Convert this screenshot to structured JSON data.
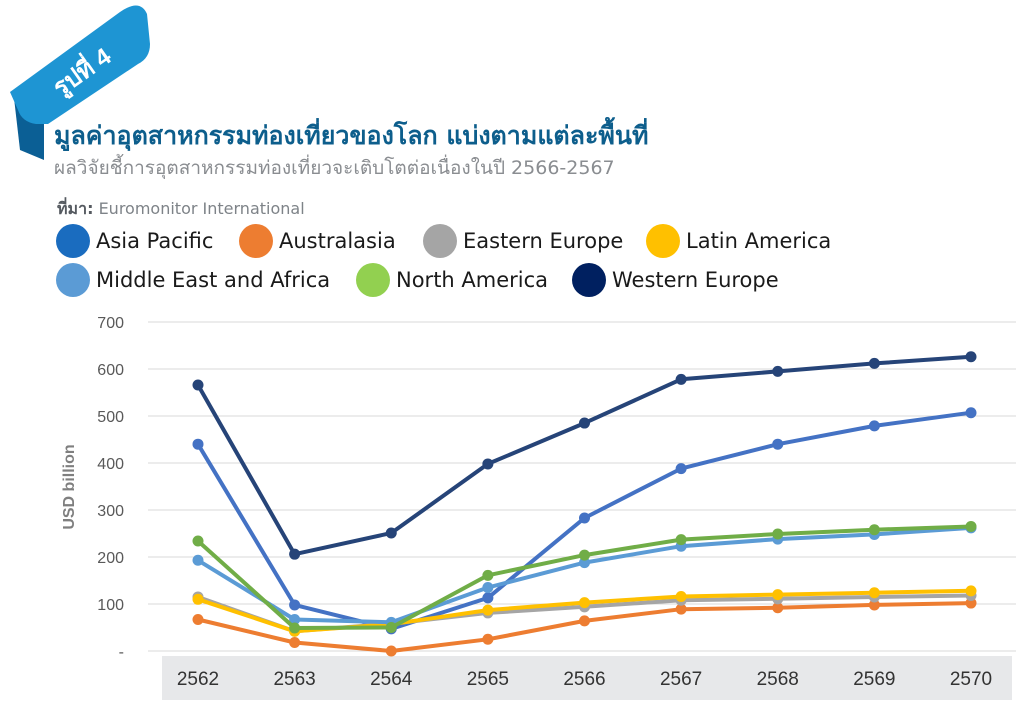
{
  "badge": {
    "text": "รูปที่ 4",
    "color": "#1e95d3"
  },
  "header": {
    "title": "มูลค่าอุตสาหกรรมท่องเที่ยวของโลก แบ่งตามแต่ละพื้นที่",
    "subtitle": "ผลวิจัยชี้การอุตสาหกรรมท่องเที่ยวจะเติบโตต่อเนื่องในปี 2566-2567",
    "source_label": "ที่มา:",
    "source_value": " Euromonitor International"
  },
  "chart_data": {
    "type": "line",
    "title": "มูลค่าอุตสาหกรรมท่องเที่ยวของโลก แบ่งตามแต่ละพื้นที่",
    "xlabel": "",
    "ylabel": "USD billion",
    "x": [
      "2562",
      "2563",
      "2564",
      "2565",
      "2566",
      "2567",
      "2568",
      "2569",
      "2570"
    ],
    "ylim": [
      0,
      700
    ],
    "yticks": [
      0,
      100,
      200,
      300,
      400,
      500,
      600,
      700
    ],
    "ytick_labels": [
      "-",
      "100",
      "200",
      "300",
      "400",
      "500",
      "600",
      "700"
    ],
    "grid": true,
    "legend_position": "top",
    "series": [
      {
        "name": "Asia Pacific",
        "color": "#1a6cbf",
        "line_color": "#4472c4",
        "values": [
          440,
          98,
          47,
          113,
          283,
          388,
          440,
          479,
          507
        ]
      },
      {
        "name": "Australasia",
        "color": "#ed7d31",
        "line_color": "#ed7d31",
        "values": [
          67,
          18,
          0,
          25,
          64,
          89,
          92,
          98,
          102
        ]
      },
      {
        "name": "Eastern Europe",
        "color": "#a5a5a5",
        "line_color": "#a5a5a5",
        "values": [
          115,
          42,
          58,
          81,
          94,
          108,
          111,
          115,
          118
        ]
      },
      {
        "name": "Latin America",
        "color": "#ffc000",
        "line_color": "#ffc000",
        "values": [
          110,
          42,
          57,
          87,
          103,
          116,
          120,
          124,
          128
        ]
      },
      {
        "name": "Middle East and Africa",
        "color": "#5b9bd5",
        "line_color": "#5b9bd5",
        "values": [
          193,
          67,
          61,
          135,
          188,
          223,
          238,
          248,
          262
        ]
      },
      {
        "name": "North America",
        "color": "#92d050",
        "line_color": "#70ad47",
        "values": [
          234,
          49,
          50,
          161,
          204,
          237,
          249,
          258,
          265
        ]
      },
      {
        "name": "Western Europe",
        "color": "#002060",
        "line_color": "#264478",
        "values": [
          566,
          206,
          251,
          398,
          485,
          578,
          595,
          612,
          626
        ]
      }
    ]
  }
}
